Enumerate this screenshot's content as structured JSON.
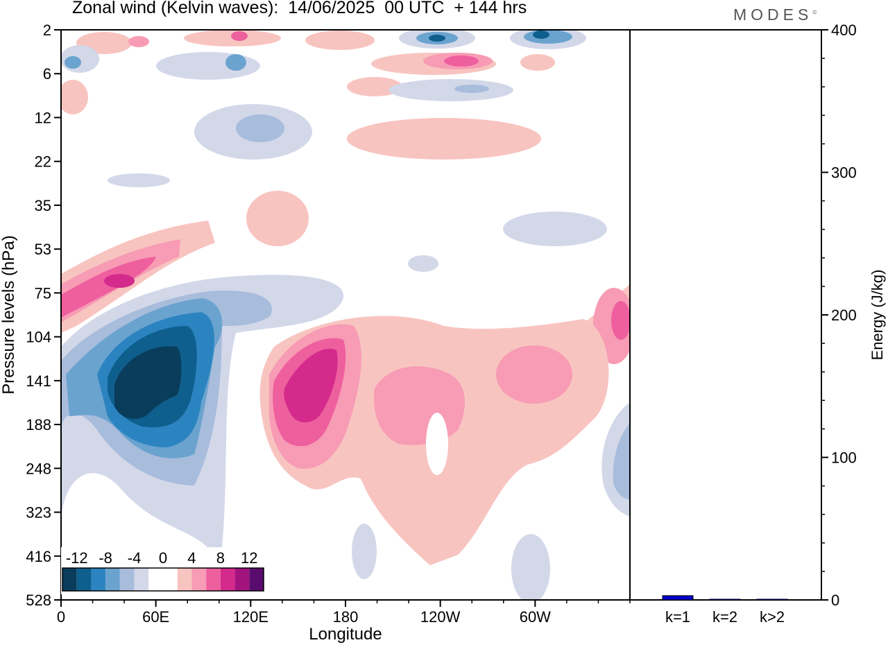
{
  "title": "Zonal wind (Kelvin waves):  14/06/2025  00 UTC  + 144 hrs",
  "brand": "MODES",
  "brand_mark": "©",
  "chart_data": [
    {
      "type": "heatmap",
      "title": "Zonal wind (Kelvin waves):  14/06/2025  00 UTC  + 144 hrs",
      "xlabel": "Longitude",
      "ylabel": "Pressure levels (hPa)",
      "x_ticks": [
        "0",
        "60E",
        "120E",
        "180",
        "120W",
        "60W"
      ],
      "x_tick_degrees": [
        0,
        60,
        120,
        180,
        240,
        300
      ],
      "xlim": [
        0,
        360
      ],
      "y_ticks": [
        "2",
        "6",
        "12",
        "22",
        "35",
        "53",
        "75",
        "104",
        "141",
        "188",
        "248",
        "323",
        "416",
        "528"
      ],
      "colorbar": {
        "labels": [
          "-12",
          "-8",
          "-4",
          "0",
          "4",
          "8",
          "12"
        ],
        "colors": [
          "#0a3d5c",
          "#0f5f8e",
          "#2b84c0",
          "#6ba3cf",
          "#a8bcdc",
          "#d3d8e9",
          "#ffffff",
          "#ffffff",
          "#f8c4c0",
          "#f79cb4",
          "#ee5f9e",
          "#d42a8c",
          "#a2137e",
          "#5a0c6e"
        ]
      },
      "features": [
        {
          "sign": "negative",
          "peak": -12,
          "longitude": 50,
          "pressure": 141
        },
        {
          "sign": "positive",
          "peak": 10,
          "longitude": 155,
          "pressure": 141
        },
        {
          "sign": "positive",
          "peak": 9,
          "longitude": 35,
          "pressure": 75
        },
        {
          "sign": "positive",
          "peak": 8,
          "longitude": 0,
          "pressure": 90
        },
        {
          "sign": "positive",
          "peak": 6,
          "longitude": 300,
          "pressure": 141
        },
        {
          "sign": "positive",
          "peak": 6,
          "longitude": 355,
          "pressure": 104
        },
        {
          "sign": "negative",
          "peak": -6,
          "longitude": 355,
          "pressure": 200
        },
        {
          "sign": "positive",
          "peak": 6,
          "longitude": 233,
          "pressure": 5
        }
      ]
    },
    {
      "type": "bar",
      "ylabel": "Energy (J/kg)",
      "ylim": [
        0,
        400
      ],
      "y_ticks": [
        "0",
        "100",
        "200",
        "300",
        "400"
      ],
      "categories": [
        "k=1",
        "k=2",
        "k>2"
      ],
      "values": [
        3,
        0.5,
        0.5
      ],
      "colors": [
        "#0000cc",
        "#0000cc",
        "#0000cc"
      ]
    }
  ]
}
